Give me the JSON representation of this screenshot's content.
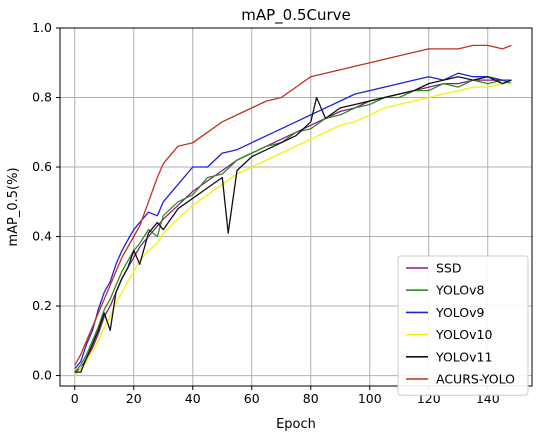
{
  "chart_data": {
    "type": "line",
    "title": "mAP_0.5Curve",
    "xlabel": "Epoch",
    "ylabel": "mAP_0.5(%)",
    "xlim": [
      -5,
      155
    ],
    "ylim": [
      -0.03,
      1.0
    ],
    "xticks": [
      0,
      20,
      40,
      60,
      80,
      100,
      120,
      140
    ],
    "yticks": [
      0.0,
      0.2,
      0.4,
      0.6,
      0.8,
      1.0
    ],
    "xtick_labels": [
      "0",
      "20",
      "40",
      "60",
      "80",
      "100",
      "120",
      "140"
    ],
    "ytick_labels": [
      "0.0",
      "0.2",
      "0.4",
      "0.6",
      "0.8",
      "1.0"
    ],
    "grid": true,
    "legend_position": "lower-right",
    "series": [
      {
        "name": "SSD",
        "color": "#8b1a8b",
        "x": [
          0,
          2,
          4,
          6,
          8,
          10,
          12,
          14,
          16,
          18,
          20,
          22,
          25,
          28,
          30,
          35,
          40,
          45,
          50,
          55,
          60,
          65,
          70,
          75,
          80,
          85,
          90,
          95,
          100,
          105,
          110,
          115,
          120,
          125,
          130,
          135,
          140,
          145,
          148
        ],
        "y": [
          0.01,
          0.02,
          0.05,
          0.08,
          0.12,
          0.17,
          0.2,
          0.24,
          0.28,
          0.31,
          0.34,
          0.37,
          0.4,
          0.43,
          0.45,
          0.49,
          0.53,
          0.56,
          0.59,
          0.62,
          0.64,
          0.66,
          0.68,
          0.7,
          0.72,
          0.74,
          0.76,
          0.77,
          0.79,
          0.8,
          0.81,
          0.82,
          0.83,
          0.84,
          0.84,
          0.85,
          0.85,
          0.85,
          0.84
        ]
      },
      {
        "name": "YOLOv8",
        "color": "#2e8b20",
        "x": [
          0,
          2,
          4,
          6,
          8,
          10,
          12,
          14,
          16,
          18,
          20,
          22,
          25,
          28,
          30,
          35,
          40,
          45,
          50,
          55,
          60,
          65,
          70,
          75,
          80,
          85,
          90,
          95,
          100,
          105,
          110,
          115,
          120,
          125,
          130,
          135,
          140,
          145,
          148
        ],
        "y": [
          0.01,
          0.03,
          0.06,
          0.1,
          0.14,
          0.19,
          0.22,
          0.26,
          0.3,
          0.33,
          0.36,
          0.38,
          0.42,
          0.4,
          0.46,
          0.5,
          0.52,
          0.57,
          0.58,
          0.62,
          0.64,
          0.66,
          0.67,
          0.7,
          0.71,
          0.74,
          0.75,
          0.77,
          0.78,
          0.8,
          0.8,
          0.82,
          0.82,
          0.84,
          0.83,
          0.85,
          0.84,
          0.85,
          0.84
        ]
      },
      {
        "name": "YOLOv9",
        "color": "#1f1fe6",
        "x": [
          0,
          2,
          4,
          6,
          8,
          10,
          12,
          14,
          16,
          18,
          20,
          22,
          25,
          28,
          30,
          35,
          40,
          45,
          50,
          55,
          60,
          65,
          70,
          75,
          80,
          85,
          90,
          95,
          100,
          105,
          110,
          115,
          120,
          125,
          130,
          135,
          140,
          145,
          148
        ],
        "y": [
          0.02,
          0.04,
          0.09,
          0.13,
          0.19,
          0.24,
          0.27,
          0.32,
          0.36,
          0.39,
          0.42,
          0.44,
          0.47,
          0.46,
          0.5,
          0.55,
          0.6,
          0.6,
          0.64,
          0.65,
          0.67,
          0.69,
          0.71,
          0.73,
          0.75,
          0.77,
          0.79,
          0.81,
          0.82,
          0.83,
          0.84,
          0.85,
          0.86,
          0.85,
          0.87,
          0.86,
          0.86,
          0.85,
          0.85
        ]
      },
      {
        "name": "YOLOv10",
        "color": "#f2f20a",
        "x": [
          0,
          2,
          4,
          6,
          8,
          10,
          12,
          14,
          16,
          18,
          20,
          22,
          25,
          28,
          30,
          35,
          40,
          45,
          50,
          55,
          60,
          65,
          70,
          75,
          80,
          85,
          90,
          95,
          100,
          105,
          110,
          115,
          120,
          125,
          130,
          135,
          140,
          145,
          148
        ],
        "y": [
          0.0,
          0.02,
          0.04,
          0.07,
          0.1,
          0.14,
          0.17,
          0.21,
          0.24,
          0.27,
          0.3,
          0.33,
          0.36,
          0.38,
          0.41,
          0.45,
          0.49,
          0.52,
          0.55,
          0.58,
          0.6,
          0.62,
          0.64,
          0.66,
          0.68,
          0.7,
          0.72,
          0.73,
          0.75,
          0.77,
          0.78,
          0.79,
          0.8,
          0.81,
          0.82,
          0.83,
          0.83,
          0.84,
          0.84
        ]
      },
      {
        "name": "YOLOv11",
        "color": "#111111",
        "x": [
          0,
          2,
          4,
          6,
          8,
          10,
          12,
          14,
          16,
          18,
          20,
          22,
          25,
          28,
          30,
          35,
          40,
          45,
          50,
          52,
          55,
          60,
          65,
          70,
          75,
          80,
          82,
          85,
          90,
          95,
          100,
          105,
          110,
          115,
          120,
          125,
          130,
          135,
          140,
          145,
          148
        ],
        "y": [
          0.01,
          0.01,
          0.05,
          0.09,
          0.13,
          0.18,
          0.13,
          0.24,
          0.28,
          0.31,
          0.36,
          0.32,
          0.41,
          0.44,
          0.42,
          0.48,
          0.51,
          0.54,
          0.57,
          0.41,
          0.59,
          0.63,
          0.65,
          0.67,
          0.69,
          0.73,
          0.8,
          0.74,
          0.77,
          0.78,
          0.79,
          0.8,
          0.81,
          0.82,
          0.84,
          0.85,
          0.86,
          0.85,
          0.86,
          0.84,
          0.85
        ]
      },
      {
        "name": "ACURS-YOLO",
        "color": "#c0321e",
        "x": [
          0,
          2,
          4,
          6,
          8,
          10,
          12,
          14,
          16,
          18,
          20,
          22,
          25,
          28,
          30,
          35,
          40,
          45,
          50,
          55,
          60,
          65,
          70,
          75,
          80,
          85,
          90,
          95,
          100,
          105,
          110,
          115,
          120,
          125,
          130,
          135,
          140,
          145,
          148
        ],
        "y": [
          0.03,
          0.06,
          0.1,
          0.14,
          0.18,
          0.22,
          0.26,
          0.3,
          0.34,
          0.37,
          0.4,
          0.43,
          0.5,
          0.57,
          0.61,
          0.66,
          0.67,
          0.7,
          0.73,
          0.75,
          0.77,
          0.79,
          0.8,
          0.83,
          0.86,
          0.87,
          0.88,
          0.89,
          0.9,
          0.91,
          0.92,
          0.93,
          0.94,
          0.94,
          0.94,
          0.95,
          0.95,
          0.94,
          0.95
        ]
      }
    ]
  }
}
